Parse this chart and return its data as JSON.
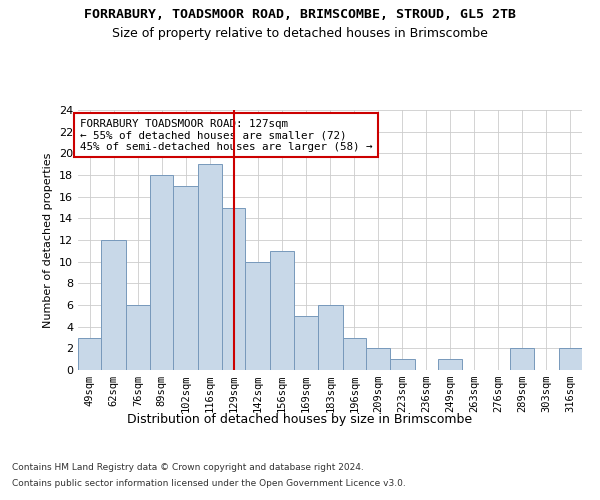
{
  "title1": "FORRABURY, TOADSMOOR ROAD, BRIMSCOMBE, STROUD, GL5 2TB",
  "title2": "Size of property relative to detached houses in Brimscombe",
  "xlabel": "Distribution of detached houses by size in Brimscombe",
  "ylabel": "Number of detached properties",
  "bin_labels": [
    "49sqm",
    "62sqm",
    "76sqm",
    "89sqm",
    "102sqm",
    "116sqm",
    "129sqm",
    "142sqm",
    "156sqm",
    "169sqm",
    "183sqm",
    "196sqm",
    "209sqm",
    "223sqm",
    "236sqm",
    "249sqm",
    "263sqm",
    "276sqm",
    "289sqm",
    "303sqm",
    "316sqm"
  ],
  "bin_edges": [
    42.5,
    55.5,
    69,
    82.5,
    95.5,
    109,
    122.5,
    135.5,
    149,
    162.5,
    176,
    189.5,
    202.5,
    216,
    229.5,
    242.5,
    256,
    269.5,
    282.5,
    296,
    309.5,
    322.5
  ],
  "counts": [
    3,
    12,
    6,
    18,
    17,
    19,
    15,
    10,
    11,
    5,
    6,
    3,
    2,
    1,
    0,
    1,
    0,
    0,
    2,
    0,
    2
  ],
  "bar_color": "#c8d8e8",
  "bar_edge_color": "#7799bb",
  "reference_line_x": 129,
  "reference_line_color": "#cc0000",
  "annotation_text": "FORRABURY TOADSMOOR ROAD: 127sqm\n← 55% of detached houses are smaller (72)\n45% of semi-detached houses are larger (58) →",
  "annotation_box_color": "#ffffff",
  "annotation_box_edge": "#cc0000",
  "ylim": [
    0,
    24
  ],
  "yticks": [
    0,
    2,
    4,
    6,
    8,
    10,
    12,
    14,
    16,
    18,
    20,
    22,
    24
  ],
  "footer1": "Contains HM Land Registry data © Crown copyright and database right 2024.",
  "footer2": "Contains public sector information licensed under the Open Government Licence v3.0.",
  "bg_color": "#ffffff",
  "plot_bg_color": "#ffffff"
}
